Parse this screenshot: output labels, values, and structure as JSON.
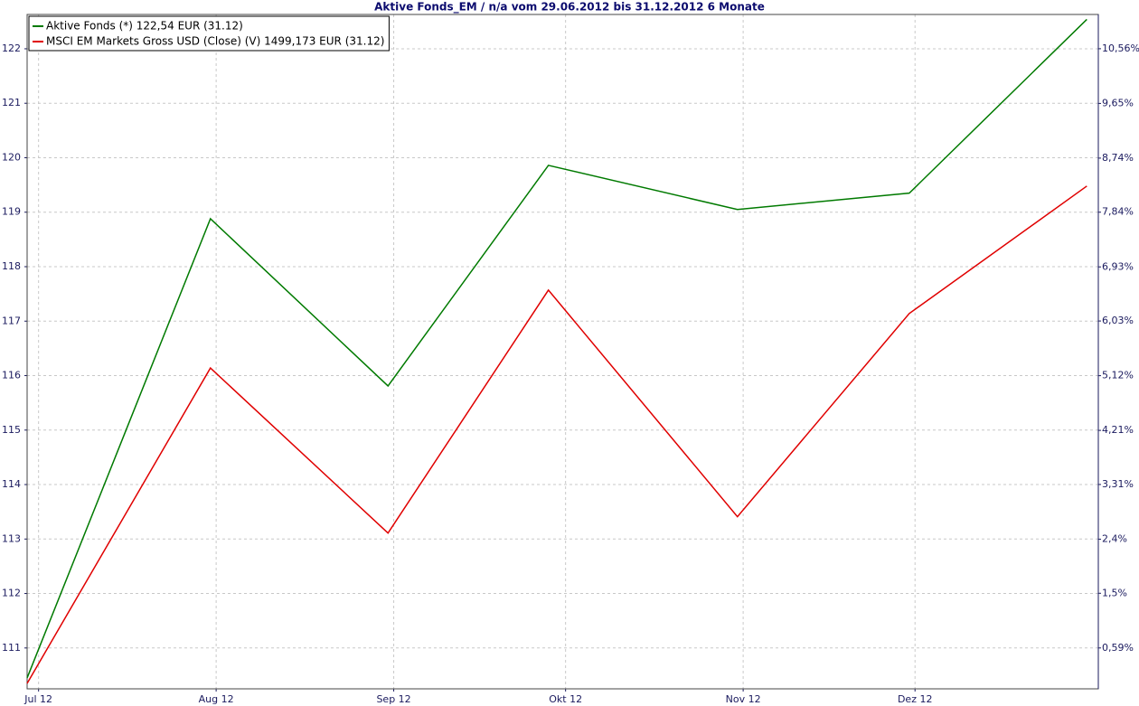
{
  "chart_data": {
    "type": "line",
    "title": "Aktive Fonds_EM / n/a vom 29.06.2012 bis 31.12.2012 6 Monate",
    "x": [
      "2012-06-29",
      "2012-07-31",
      "2012-08-31",
      "2012-09-28",
      "2012-10-31",
      "2012-11-30",
      "2012-12-31"
    ],
    "xlim": [
      "2012-06-29",
      "2013-01-02"
    ],
    "xticks": [
      {
        "value": "2012-07-01",
        "label": "Jul 12"
      },
      {
        "value": "2012-08-01",
        "label": "Aug 12"
      },
      {
        "value": "2012-09-01",
        "label": "Sep 12"
      },
      {
        "value": "2012-10-01",
        "label": "Okt 12"
      },
      {
        "value": "2012-11-01",
        "label": "Nov 12"
      },
      {
        "value": "2012-12-01",
        "label": "Dez 12"
      }
    ],
    "ylim": [
      110.25,
      122.63
    ],
    "yticks": [
      111,
      112,
      113,
      114,
      115,
      116,
      117,
      118,
      119,
      120,
      121,
      122
    ],
    "y2lim": [
      -0.09,
      11.13
    ],
    "y2ticks": [
      {
        "value": 0.59,
        "label": "0,59%"
      },
      {
        "value": 1.5,
        "label": "1,5%"
      },
      {
        "value": 2.4,
        "label": "2,4%"
      },
      {
        "value": 3.31,
        "label": "3,31%"
      },
      {
        "value": 4.21,
        "label": "4,21%"
      },
      {
        "value": 5.12,
        "label": "5,12%"
      },
      {
        "value": 6.03,
        "label": "6,03%"
      },
      {
        "value": 6.93,
        "label": "6,93%"
      },
      {
        "value": 7.84,
        "label": "7,84%"
      },
      {
        "value": 8.74,
        "label": "8,74%"
      },
      {
        "value": 9.65,
        "label": "9,65%"
      },
      {
        "value": 10.56,
        "label": "10,56%"
      }
    ],
    "grid": true,
    "legend": "top-left",
    "series": [
      {
        "name": "Aktive Fonds (*) 122,54 EUR (31.12)",
        "color": "#007a00",
        "values": [
          110.45,
          118.88,
          115.81,
          119.86,
          119.05,
          119.35,
          122.54
        ]
      },
      {
        "name": "MSCI EM Markets Gross USD (Close) (V) 1499,173 EUR (31.12)",
        "color": "#e00000",
        "values": [
          110.35,
          116.14,
          113.11,
          117.57,
          113.41,
          117.14,
          119.48
        ]
      }
    ]
  }
}
